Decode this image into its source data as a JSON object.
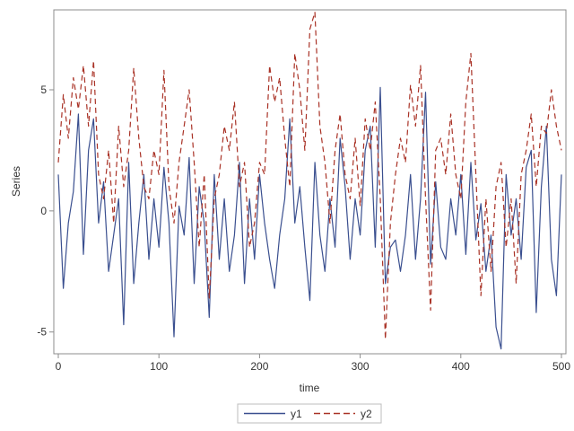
{
  "chart_data": {
    "type": "line",
    "title": "",
    "xlabel": "time",
    "ylabel": "Series",
    "xlim": [
      0,
      500
    ],
    "ylim": [
      -5.9,
      8.3
    ],
    "x_ticks": [
      0,
      100,
      200,
      300,
      400,
      500
    ],
    "y_ticks": [
      -5,
      0,
      5
    ],
    "x_tick_labels": [
      "0",
      "100",
      "200",
      "300",
      "400",
      "500"
    ],
    "y_tick_labels": [
      "-5",
      "0",
      "5"
    ],
    "grid": false,
    "legend_position": "bottom-center",
    "series": [
      {
        "name": "y1",
        "color": "#3a4f8f",
        "dash": "solid",
        "x": [
          0,
          5,
          10,
          15,
          20,
          25,
          30,
          35,
          40,
          45,
          50,
          55,
          60,
          65,
          70,
          75,
          80,
          85,
          90,
          95,
          100,
          105,
          110,
          115,
          120,
          125,
          130,
          135,
          140,
          145,
          150,
          155,
          160,
          165,
          170,
          175,
          180,
          185,
          190,
          195,
          200,
          205,
          210,
          215,
          220,
          225,
          230,
          235,
          240,
          245,
          250,
          255,
          260,
          265,
          270,
          275,
          280,
          285,
          290,
          295,
          300,
          305,
          310,
          315,
          320,
          325,
          330,
          335,
          340,
          345,
          350,
          355,
          360,
          365,
          370,
          375,
          380,
          385,
          390,
          395,
          400,
          405,
          410,
          415,
          420,
          425,
          430,
          435,
          440,
          445,
          450,
          455,
          460,
          465,
          470,
          475,
          480,
          485,
          490,
          495,
          500
        ],
        "values": [
          1.5,
          -3.2,
          -0.5,
          0.8,
          4.0,
          -1.8,
          2.5,
          3.8,
          -0.5,
          1.2,
          -2.5,
          -1.0,
          0.5,
          -4.7,
          2.0,
          -3.0,
          -0.5,
          1.5,
          -2.0,
          0.5,
          -1.5,
          1.8,
          -0.5,
          -5.2,
          0.2,
          -1.0,
          2.2,
          -3.0,
          1.0,
          -0.5,
          -4.4,
          1.5,
          -2.0,
          0.5,
          -2.5,
          -1.0,
          2.0,
          -3.0,
          0.5,
          -2.0,
          1.5,
          -0.5,
          -2.0,
          -3.2,
          -1.0,
          0.5,
          3.8,
          -0.5,
          1.0,
          -1.5,
          -3.7,
          2.0,
          -1.0,
          -2.5,
          0.5,
          -1.5,
          3.0,
          1.0,
          -2.0,
          0.5,
          -1.0,
          2.5,
          3.5,
          -1.5,
          5.1,
          -3.0,
          -1.5,
          -1.2,
          -2.5,
          -1.0,
          1.5,
          -2.0,
          0.5,
          4.9,
          -2.2,
          1.2,
          -1.5,
          -2.0,
          0.5,
          -1.0,
          1.5,
          -1.8,
          2.0,
          -1.2,
          0.3,
          -2.5,
          -1.0,
          -4.8,
          -5.7,
          1.5,
          -1.0,
          0.5,
          -2.0,
          1.8,
          2.5,
          -4.2,
          1.0,
          3.5,
          -2.0,
          -3.5,
          1.5
        ]
      },
      {
        "name": "y2",
        "color": "#a93226",
        "dash": "dashed",
        "x": [
          0,
          5,
          10,
          15,
          20,
          25,
          30,
          35,
          40,
          45,
          50,
          55,
          60,
          65,
          70,
          75,
          80,
          85,
          90,
          95,
          100,
          105,
          110,
          115,
          120,
          125,
          130,
          135,
          140,
          145,
          150,
          155,
          160,
          165,
          170,
          175,
          180,
          185,
          190,
          195,
          200,
          205,
          210,
          215,
          220,
          225,
          230,
          235,
          240,
          245,
          250,
          255,
          260,
          265,
          270,
          275,
          280,
          285,
          290,
          295,
          300,
          305,
          310,
          315,
          320,
          325,
          330,
          335,
          340,
          345,
          350,
          355,
          360,
          365,
          370,
          375,
          380,
          385,
          390,
          395,
          400,
          405,
          410,
          415,
          420,
          425,
          430,
          435,
          440,
          445,
          450,
          455,
          460,
          465,
          470,
          475,
          480,
          485,
          490,
          495,
          500
        ],
        "values": [
          2.0,
          4.8,
          3.0,
          5.5,
          4.2,
          6.0,
          3.5,
          6.2,
          1.5,
          0.5,
          2.5,
          -0.5,
          3.5,
          1.0,
          2.5,
          5.9,
          3.0,
          1.0,
          0.5,
          2.5,
          1.5,
          5.8,
          1.0,
          -0.5,
          2.0,
          3.5,
          5.0,
          2.0,
          -1.5,
          1.5,
          -3.6,
          0.5,
          1.5,
          3.5,
          2.5,
          4.5,
          1.0,
          2.0,
          -1.5,
          -0.5,
          2.0,
          1.5,
          6.0,
          4.5,
          5.5,
          3.0,
          1.0,
          6.5,
          5.0,
          2.5,
          7.5,
          8.2,
          3.5,
          2.0,
          -0.5,
          2.5,
          4.0,
          1.5,
          0.5,
          3.0,
          0.2,
          3.8,
          2.5,
          4.5,
          0.5,
          -5.3,
          -0.5,
          1.5,
          3.0,
          2.0,
          5.2,
          3.5,
          6.0,
          0.5,
          -4.1,
          2.5,
          3.0,
          1.5,
          4.0,
          1.5,
          0.5,
          4.5,
          6.5,
          1.5,
          -3.5,
          0.5,
          -2.5,
          1.0,
          2.0,
          -1.5,
          0.5,
          -3.0,
          1.5,
          2.5,
          4.0,
          1.0,
          3.5,
          3.2,
          5.0,
          3.5,
          2.5
        ]
      }
    ]
  }
}
